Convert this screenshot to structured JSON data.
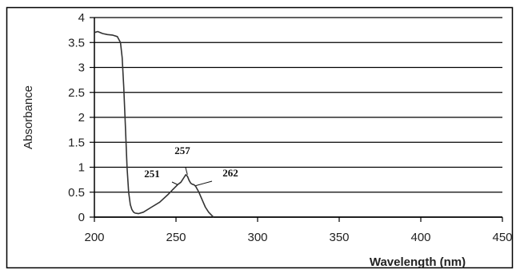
{
  "chart_data": {
    "type": "line",
    "title": "",
    "xlabel": "Wavelength (nm)",
    "ylabel": "Absorbance",
    "xlim": [
      200,
      450
    ],
    "ylim": [
      0,
      4
    ],
    "x_ticks": [
      "200",
      "250",
      "300",
      "350",
      "400",
      "450"
    ],
    "y_ticks": [
      "0",
      "0.5",
      "1",
      "1.5",
      "2",
      "2.5",
      "3",
      "3.5",
      "4"
    ],
    "grid": "horizontal",
    "legend": "none",
    "series": [
      {
        "x": [
          200,
          202,
          205,
          208,
          211,
          214,
          216,
          217,
          218,
          219,
          220,
          221,
          222,
          223,
          224,
          225,
          227,
          230,
          235,
          240,
          245,
          248,
          251,
          253,
          255,
          256,
          257,
          258,
          259,
          260,
          261,
          262,
          264,
          266,
          268,
          270,
          272,
          273
        ],
        "y": [
          3.7,
          3.72,
          3.68,
          3.66,
          3.65,
          3.62,
          3.5,
          3.2,
          2.6,
          1.8,
          1.0,
          0.5,
          0.25,
          0.15,
          0.1,
          0.08,
          0.07,
          0.1,
          0.2,
          0.3,
          0.45,
          0.55,
          0.65,
          0.7,
          0.8,
          0.85,
          0.82,
          0.74,
          0.68,
          0.66,
          0.65,
          0.62,
          0.5,
          0.35,
          0.2,
          0.1,
          0.03,
          0.0
        ]
      }
    ],
    "annotations": [
      {
        "text": "257",
        "x": 257,
        "y": 0.85
      },
      {
        "text": "251",
        "x": 251,
        "y": 0.65
      },
      {
        "text": "262",
        "x": 262,
        "y": 0.63
      }
    ]
  }
}
